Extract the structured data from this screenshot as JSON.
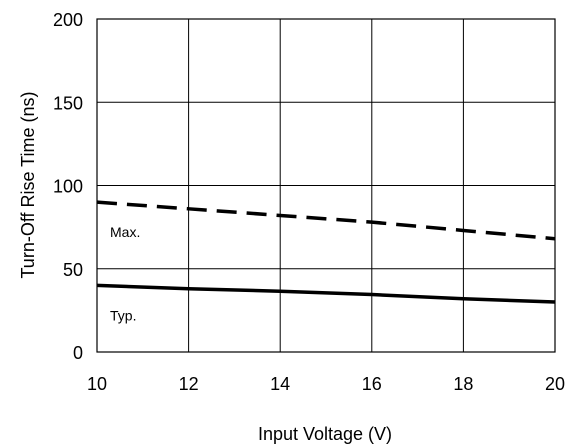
{
  "chart_data": {
    "type": "line",
    "xlabel": "Input Voltage (V)",
    "ylabel": "Turn-Off Rise Time (ns)",
    "xlim": [
      10,
      20
    ],
    "ylim": [
      0,
      200
    ],
    "xticks": [
      10,
      12,
      14,
      16,
      18,
      20
    ],
    "yticks": [
      0,
      50,
      100,
      150,
      200
    ],
    "grid": true,
    "legend": "inline",
    "series": [
      {
        "name": "Max.",
        "style": "dashed",
        "color": "#000000",
        "x": [
          10,
          12,
          14,
          16,
          18,
          20
        ],
        "y": [
          90,
          86,
          82,
          78,
          73,
          68
        ]
      },
      {
        "name": "Typ.",
        "style": "solid",
        "color": "#000000",
        "x": [
          10,
          12,
          14,
          16,
          18,
          20
        ],
        "y": [
          40,
          38,
          36.5,
          34.5,
          32,
          30
        ]
      }
    ]
  }
}
